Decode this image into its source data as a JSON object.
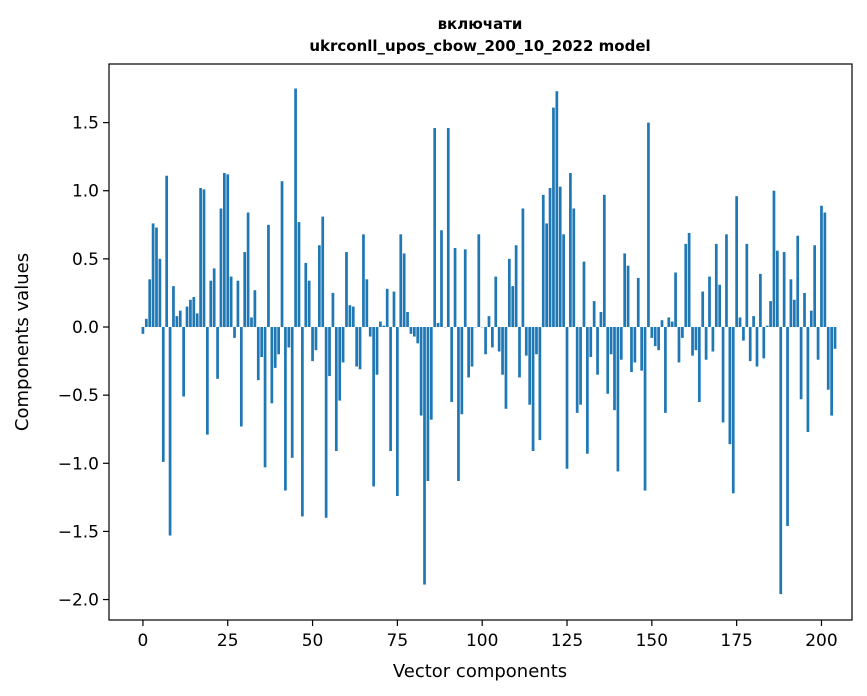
{
  "chart_data": {
    "type": "bar",
    "title": "включати",
    "subtitle": "ukrconll_upos_cbow_200_10_2022 model",
    "xlabel": "Vector components",
    "ylabel": "Components values",
    "xlim": [
      -10,
      209
    ],
    "ylim": [
      -2.15,
      1.93
    ],
    "x_ticks": [
      0,
      25,
      50,
      75,
      100,
      125,
      150,
      175,
      200
    ],
    "x_tick_labels": [
      "0",
      "25",
      "50",
      "75",
      "100",
      "125",
      "150",
      "175",
      "200"
    ],
    "y_ticks": [
      1.5,
      1.0,
      0.5,
      0.0,
      -0.5,
      -1.0,
      -1.5,
      -2.0
    ],
    "y_tick_labels": [
      "1.5",
      "1.0",
      "0.5",
      "0.0",
      "−0.5",
      "−1.0",
      "−1.5",
      "−2.0"
    ],
    "grid": false,
    "bar_color": "#1f77b4",
    "values": [
      -0.05,
      0.06,
      0.35,
      0.76,
      0.73,
      0.5,
      -0.99,
      1.11,
      -1.53,
      0.3,
      0.08,
      0.12,
      -0.51,
      0.15,
      0.2,
      0.22,
      0.1,
      1.02,
      1.01,
      -0.79,
      0.34,
      0.43,
      -0.38,
      0.87,
      1.13,
      1.12,
      0.37,
      -0.08,
      0.34,
      -0.73,
      0.55,
      0.84,
      0.07,
      0.27,
      -0.39,
      -0.22,
      -1.03,
      0.75,
      -0.56,
      -0.3,
      -0.2,
      1.07,
      -1.2,
      -0.15,
      -0.96,
      1.75,
      0.77,
      -1.39,
      0.47,
      0.34,
      -0.25,
      -0.17,
      0.6,
      0.81,
      -1.4,
      -0.36,
      0.25,
      -0.91,
      -0.54,
      -0.26,
      0.55,
      0.16,
      0.15,
      -0.29,
      -0.31,
      0.68,
      0.35,
      -0.07,
      -1.17,
      -0.35,
      0.04,
      0.01,
      0.28,
      -0.91,
      0.26,
      -1.24,
      0.68,
      0.54,
      0.11,
      -0.05,
      -0.07,
      -0.12,
      -0.65,
      -1.89,
      -1.13,
      -0.68,
      1.46,
      0.03,
      0.71,
      0.0,
      1.46,
      -0.55,
      0.58,
      -1.13,
      -0.64,
      0.57,
      -0.37,
      -0.29,
      0.0,
      0.68,
      0.0,
      -0.2,
      0.08,
      -0.15,
      0.37,
      -0.18,
      -0.35,
      -0.6,
      0.5,
      0.3,
      0.6,
      -0.37,
      0.87,
      -0.21,
      -0.57,
      -0.91,
      -0.2,
      -0.83,
      0.97,
      0.76,
      1.02,
      1.61,
      1.73,
      1.03,
      0.68,
      -1.04,
      1.13,
      0.87,
      -0.63,
      -0.57,
      0.48,
      -0.93,
      -0.22,
      0.19,
      -0.35,
      0.11,
      0.97,
      -0.49,
      -0.2,
      -0.61,
      -1.06,
      -0.24,
      0.54,
      0.45,
      -0.33,
      -0.26,
      0.36,
      -0.32,
      -1.2,
      1.5,
      -0.08,
      -0.14,
      -0.17,
      0.05,
      -0.63,
      0.07,
      0.04,
      0.4,
      -0.26,
      -0.08,
      0.61,
      0.69,
      -0.21,
      -0.17,
      -0.55,
      0.26,
      -0.24,
      0.37,
      -0.18,
      0.61,
      0.31,
      -0.7,
      0.68,
      -0.86,
      -1.22,
      0.96,
      0.07,
      -0.1,
      0.61,
      -0.25,
      0.08,
      -0.29,
      0.39,
      -0.23,
      0.01,
      0.19,
      1.0,
      0.56,
      -1.96,
      0.55,
      -1.46,
      0.35,
      0.2,
      0.67,
      -0.53,
      0.25,
      -0.77,
      0.12,
      0.6,
      -0.24,
      0.89,
      0.84,
      -0.46,
      -0.65,
      -0.16
    ]
  }
}
